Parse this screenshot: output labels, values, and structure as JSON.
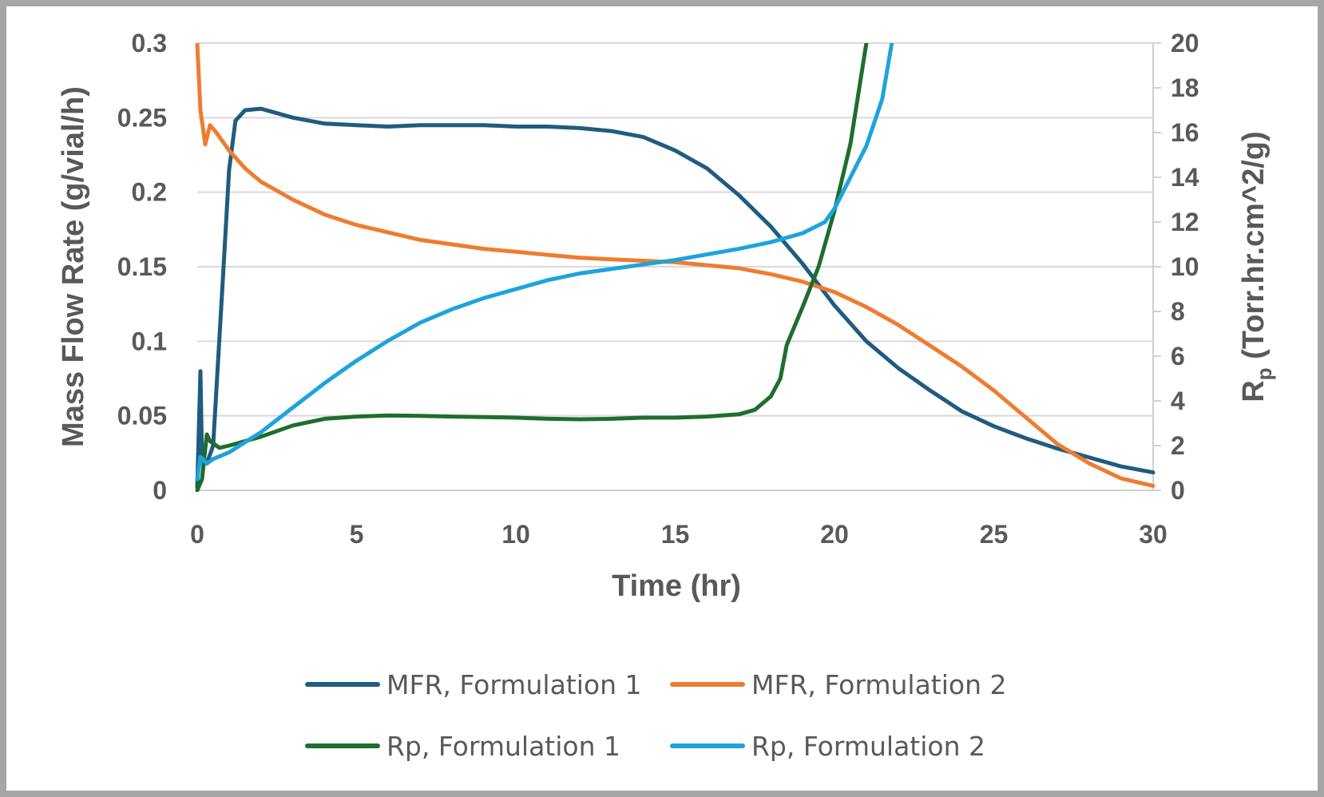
{
  "chart_data": {
    "type": "line",
    "xlabel": "Time (hr)",
    "ylabel": "Mass Flow Rate (g/vial/h)",
    "y2label_main": "R",
    "y2label_sub": "p",
    "y2label_rest": " (Torr.hr.cm^2/g)",
    "xlim": [
      0,
      30
    ],
    "ylim": [
      0,
      0.3
    ],
    "y2lim": [
      0,
      20
    ],
    "xticks": [
      "0",
      "5",
      "10",
      "15",
      "20",
      "25",
      "30"
    ],
    "yticks": [
      "0",
      "0.05",
      "0.1",
      "0.15",
      "0.2",
      "0.25",
      "0.3"
    ],
    "y2ticks": [
      "0",
      "2",
      "4",
      "6",
      "8",
      "10",
      "12",
      "14",
      "16",
      "18",
      "20"
    ],
    "grid": true,
    "legend_position": "bottom",
    "series": [
      {
        "name": "MFR, Formulation 1",
        "axis": "left",
        "color": "#1f5c7f",
        "points": [
          [
            0,
            0.002
          ],
          [
            0.1,
            0.08
          ],
          [
            0.15,
            0.02
          ],
          [
            0.3,
            0.018
          ],
          [
            0.5,
            0.03
          ],
          [
            0.8,
            0.14
          ],
          [
            1.0,
            0.215
          ],
          [
            1.2,
            0.248
          ],
          [
            1.5,
            0.255
          ],
          [
            2.0,
            0.256
          ],
          [
            2.5,
            0.253
          ],
          [
            3.0,
            0.25
          ],
          [
            4.0,
            0.246
          ],
          [
            5.0,
            0.245
          ],
          [
            6.0,
            0.244
          ],
          [
            7.0,
            0.245
          ],
          [
            8.0,
            0.245
          ],
          [
            9.0,
            0.245
          ],
          [
            10.0,
            0.244
          ],
          [
            11.0,
            0.244
          ],
          [
            12.0,
            0.243
          ],
          [
            13.0,
            0.241
          ],
          [
            14.0,
            0.237
          ],
          [
            15.0,
            0.228
          ],
          [
            16.0,
            0.216
          ],
          [
            17.0,
            0.198
          ],
          [
            18.0,
            0.177
          ],
          [
            19.0,
            0.152
          ],
          [
            20.0,
            0.124
          ],
          [
            21.0,
            0.1
          ],
          [
            22.0,
            0.082
          ],
          [
            23.0,
            0.067
          ],
          [
            24.0,
            0.053
          ],
          [
            25.0,
            0.043
          ],
          [
            26.0,
            0.035
          ],
          [
            27.0,
            0.028
          ],
          [
            28.0,
            0.022
          ],
          [
            29.0,
            0.016
          ],
          [
            30.0,
            0.012
          ]
        ]
      },
      {
        "name": "MFR, Formulation 2",
        "axis": "left",
        "color": "#ed7d31",
        "points": [
          [
            0,
            0.3
          ],
          [
            0.1,
            0.255
          ],
          [
            0.25,
            0.232
          ],
          [
            0.4,
            0.245
          ],
          [
            0.6,
            0.24
          ],
          [
            1.0,
            0.228
          ],
          [
            1.5,
            0.216
          ],
          [
            2.0,
            0.207
          ],
          [
            3.0,
            0.195
          ],
          [
            4.0,
            0.185
          ],
          [
            5.0,
            0.178
          ],
          [
            6.0,
            0.173
          ],
          [
            7.0,
            0.168
          ],
          [
            8.0,
            0.165
          ],
          [
            9.0,
            0.162
          ],
          [
            10.0,
            0.16
          ],
          [
            11.0,
            0.158
          ],
          [
            12.0,
            0.156
          ],
          [
            13.0,
            0.155
          ],
          [
            14.0,
            0.154
          ],
          [
            15.0,
            0.153
          ],
          [
            16.0,
            0.151
          ],
          [
            17.0,
            0.149
          ],
          [
            18.0,
            0.145
          ],
          [
            19.0,
            0.14
          ],
          [
            20.0,
            0.133
          ],
          [
            21.0,
            0.123
          ],
          [
            22.0,
            0.111
          ],
          [
            23.0,
            0.097
          ],
          [
            24.0,
            0.083
          ],
          [
            25.0,
            0.067
          ],
          [
            26.0,
            0.049
          ],
          [
            27.0,
            0.031
          ],
          [
            28.0,
            0.018
          ],
          [
            29.0,
            0.008
          ],
          [
            30.0,
            0.003
          ]
        ]
      },
      {
        "name": "Rp, Formulation 1",
        "axis": "right",
        "color": "#1e6e2d",
        "points": [
          [
            0,
            0.0
          ],
          [
            0.15,
            0.5
          ],
          [
            0.3,
            2.5
          ],
          [
            0.4,
            2.2
          ],
          [
            0.7,
            1.9
          ],
          [
            1.0,
            2.0
          ],
          [
            2.0,
            2.4
          ],
          [
            3.0,
            2.9
          ],
          [
            4.0,
            3.2
          ],
          [
            5.0,
            3.3
          ],
          [
            6.0,
            3.35
          ],
          [
            7.0,
            3.33
          ],
          [
            8.0,
            3.3
          ],
          [
            9.0,
            3.28
          ],
          [
            10.0,
            3.25
          ],
          [
            11.0,
            3.2
          ],
          [
            12.0,
            3.18
          ],
          [
            13.0,
            3.2
          ],
          [
            14.0,
            3.25
          ],
          [
            15.0,
            3.25
          ],
          [
            16.0,
            3.3
          ],
          [
            17.0,
            3.4
          ],
          [
            17.5,
            3.6
          ],
          [
            18.0,
            4.2
          ],
          [
            18.3,
            5.0
          ],
          [
            18.5,
            6.5
          ],
          [
            19.0,
            8.2
          ],
          [
            19.5,
            10.0
          ],
          [
            20.0,
            12.5
          ],
          [
            20.5,
            15.5
          ],
          [
            21.0,
            20.0
          ]
        ]
      },
      {
        "name": "Rp, Formulation 2",
        "axis": "right",
        "color": "#1ea3dc",
        "points": [
          [
            0,
            0.5
          ],
          [
            0.1,
            1.5
          ],
          [
            0.3,
            1.2
          ],
          [
            0.5,
            1.4
          ],
          [
            1.0,
            1.7
          ],
          [
            2.0,
            2.6
          ],
          [
            3.0,
            3.7
          ],
          [
            4.0,
            4.8
          ],
          [
            5.0,
            5.8
          ],
          [
            6.0,
            6.7
          ],
          [
            7.0,
            7.5
          ],
          [
            8.0,
            8.1
          ],
          [
            9.0,
            8.6
          ],
          [
            10.0,
            9.0
          ],
          [
            11.0,
            9.4
          ],
          [
            12.0,
            9.7
          ],
          [
            13.0,
            9.9
          ],
          [
            14.0,
            10.1
          ],
          [
            15.0,
            10.3
          ],
          [
            16.0,
            10.55
          ],
          [
            17.0,
            10.8
          ],
          [
            18.0,
            11.1
          ],
          [
            19.0,
            11.5
          ],
          [
            19.7,
            12.0
          ],
          [
            20.0,
            12.6
          ],
          [
            20.5,
            14.0
          ],
          [
            21.0,
            15.4
          ],
          [
            21.5,
            17.5
          ],
          [
            21.8,
            20.0
          ]
        ]
      }
    ]
  }
}
